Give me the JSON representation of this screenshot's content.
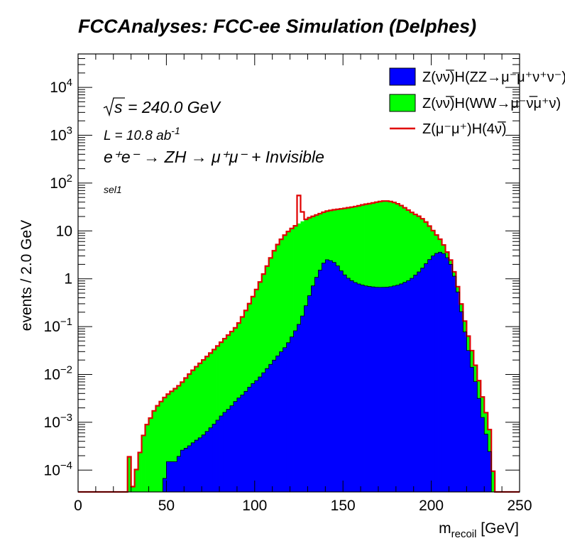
{
  "chart_data": {
    "type": "histogram",
    "title": "FCCAnalyses: FCC-ee Simulation (Delphes)",
    "xlabel": {
      "main": "m",
      "sub": "recoil",
      "unit": " [GeV]"
    },
    "ylabel": "events / 2.0 GeV",
    "xlim": [
      0,
      250
    ],
    "ylim": [
      3.5e-05,
      50000
    ],
    "yscale": "log",
    "bin_width": 2,
    "x_ticks": [
      0,
      50,
      100,
      150,
      200,
      250
    ],
    "y_ticks": [
      {
        "value": 0.0001,
        "base": "10",
        "exp": "−4"
      },
      {
        "value": 0.001,
        "base": "10",
        "exp": "−3"
      },
      {
        "value": 0.01,
        "base": "10",
        "exp": "−2"
      },
      {
        "value": 0.1,
        "base": "10",
        "exp": "−1"
      },
      {
        "value": 1,
        "base": "1",
        "exp": ""
      },
      {
        "value": 10,
        "base": "10",
        "exp": ""
      },
      {
        "value": 100,
        "base": "10",
        "exp": "2"
      },
      {
        "value": 1000,
        "base": "10",
        "exp": "3"
      },
      {
        "value": 10000,
        "base": "10",
        "exp": "4"
      }
    ],
    "annotations": {
      "sqrt_s": "= 240.0 GeV",
      "lumi_text": "L = 10.8 ab",
      "lumi_exp": "-1",
      "process": "e⁺e⁻ → ZH → μ⁺μ⁻ + Invisible",
      "selection": "sel1"
    },
    "legend_position": "top-right",
    "series": [
      {
        "name": "Z(νν̅)H(ZZ→μ⁻μ⁺ν⁺ν⁻)",
        "style": "fill",
        "color": "#0000ff",
        "points": [
          [
            48,
            3e-05
          ],
          [
            50,
            0.00015
          ],
          [
            56,
            0.00015
          ],
          [
            58,
            0.00025
          ],
          [
            62,
            0.0003
          ],
          [
            66,
            0.0004
          ],
          [
            70,
            0.0005
          ],
          [
            74,
            0.0007
          ],
          [
            78,
            0.001
          ],
          [
            82,
            0.0015
          ],
          [
            86,
            0.002
          ],
          [
            90,
            0.003
          ],
          [
            94,
            0.004
          ],
          [
            98,
            0.006
          ],
          [
            102,
            0.008
          ],
          [
            106,
            0.012
          ],
          [
            110,
            0.018
          ],
          [
            114,
            0.027
          ],
          [
            118,
            0.04
          ],
          [
            122,
            0.07
          ],
          [
            126,
            0.13
          ],
          [
            130,
            0.35
          ],
          [
            134,
            0.9
          ],
          [
            138,
            1.8
          ],
          [
            140,
            2.5
          ],
          [
            142,
            2.5
          ],
          [
            146,
            2.1
          ],
          [
            150,
            1.3
          ],
          [
            154,
            0.95
          ],
          [
            158,
            0.8
          ],
          [
            162,
            0.72
          ],
          [
            166,
            0.68
          ],
          [
            170,
            0.66
          ],
          [
            176,
            0.67
          ],
          [
            182,
            0.75
          ],
          [
            188,
            0.95
          ],
          [
            194,
            1.5
          ],
          [
            198,
            2.3
          ],
          [
            202,
            3.3
          ],
          [
            206,
            3.7
          ],
          [
            210,
            2.5
          ],
          [
            212,
            1.6
          ],
          [
            214,
            0.8
          ],
          [
            216,
            0.35
          ],
          [
            218,
            0.12
          ],
          [
            220,
            0.05
          ],
          [
            222,
            0.02
          ],
          [
            224,
            0.01
          ],
          [
            226,
            0.005
          ],
          [
            228,
            0.002
          ],
          [
            230,
            0.0008
          ],
          [
            232,
            0.0004
          ],
          [
            234,
            0.00015
          ]
        ]
      },
      {
        "name": "Z(νν̅)H(WW→μ⁻ν̅μ⁺ν)",
        "style": "fill",
        "color": "#00ff00",
        "points": [
          [
            28,
            0.0012
          ],
          [
            30,
            3e-05
          ],
          [
            38,
            0.0008
          ],
          [
            40,
            0.001
          ],
          [
            42,
            0.0015
          ],
          [
            44,
            0.002
          ],
          [
            48,
            0.003
          ],
          [
            52,
            0.004
          ],
          [
            58,
            0.006
          ],
          [
            62,
            0.009
          ],
          [
            66,
            0.013
          ],
          [
            70,
            0.018
          ],
          [
            74,
            0.025
          ],
          [
            78,
            0.035
          ],
          [
            82,
            0.05
          ],
          [
            86,
            0.07
          ],
          [
            90,
            0.1
          ],
          [
            94,
            0.18
          ],
          [
            98,
            0.35
          ],
          [
            102,
            0.7
          ],
          [
            106,
            1.5
          ],
          [
            110,
            3.3
          ],
          [
            114,
            6
          ],
          [
            118,
            9
          ],
          [
            122,
            12
          ],
          [
            126,
            15
          ],
          [
            130,
            18
          ],
          [
            134,
            20
          ],
          [
            138,
            22
          ],
          [
            142,
            24
          ],
          [
            146,
            26
          ],
          [
            150,
            28
          ],
          [
            154,
            30
          ],
          [
            158,
            32
          ],
          [
            162,
            35
          ],
          [
            166,
            37
          ],
          [
            170,
            40
          ],
          [
            174,
            42
          ],
          [
            178,
            40
          ],
          [
            182,
            35
          ],
          [
            186,
            28
          ],
          [
            190,
            22
          ],
          [
            194,
            18
          ],
          [
            198,
            12
          ],
          [
            202,
            6
          ],
          [
            206,
            2.5
          ],
          [
            208,
            1.2
          ],
          [
            210,
            0.6
          ],
          [
            212,
            0.35
          ],
          [
            214,
            0.2
          ],
          [
            216,
            0.12
          ],
          [
            218,
            0.07
          ],
          [
            220,
            0.04
          ],
          [
            222,
            0.025
          ],
          [
            224,
            0.012
          ],
          [
            226,
            0.006
          ],
          [
            228,
            0.003
          ],
          [
            230,
            0.0015
          ],
          [
            232,
            0.0007
          ],
          [
            234,
            0.0003
          ],
          [
            236,
            3e-05
          ]
        ]
      },
      {
        "name": "Z(μ⁻μ⁺)H(4ν̅)",
        "style": "line",
        "color": "#e00000",
        "points": [
          [
            124,
            55
          ],
          [
            126,
            25
          ]
        ]
      }
    ]
  }
}
